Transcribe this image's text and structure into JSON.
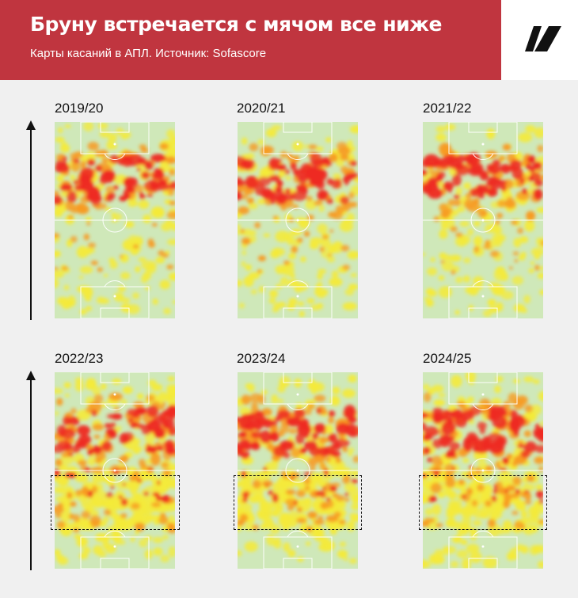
{
  "header": {
    "title": "Бруну встречается с мячом все ниже",
    "subtitle": "Карты касаний в АПЛ. Источник: Sofascore",
    "logo_icon": "publication-logo-icon"
  },
  "colors": {
    "header_bg": "#c0353f",
    "background": "#f0f0f0",
    "pitch_base": "#cfe8b9",
    "heat_low": "#f4ea3a",
    "heat_mid": "#f79b22",
    "heat_high": "#ee2b22"
  },
  "seasons": [
    {
      "label": "2019/20",
      "highlight_low_zone": false
    },
    {
      "label": "2020/21",
      "highlight_low_zone": false
    },
    {
      "label": "2021/22",
      "highlight_low_zone": false
    },
    {
      "label": "2022/23",
      "highlight_low_zone": true
    },
    {
      "label": "2023/24",
      "highlight_low_zone": true
    },
    {
      "label": "2024/25",
      "highlight_low_zone": true
    }
  ]
}
